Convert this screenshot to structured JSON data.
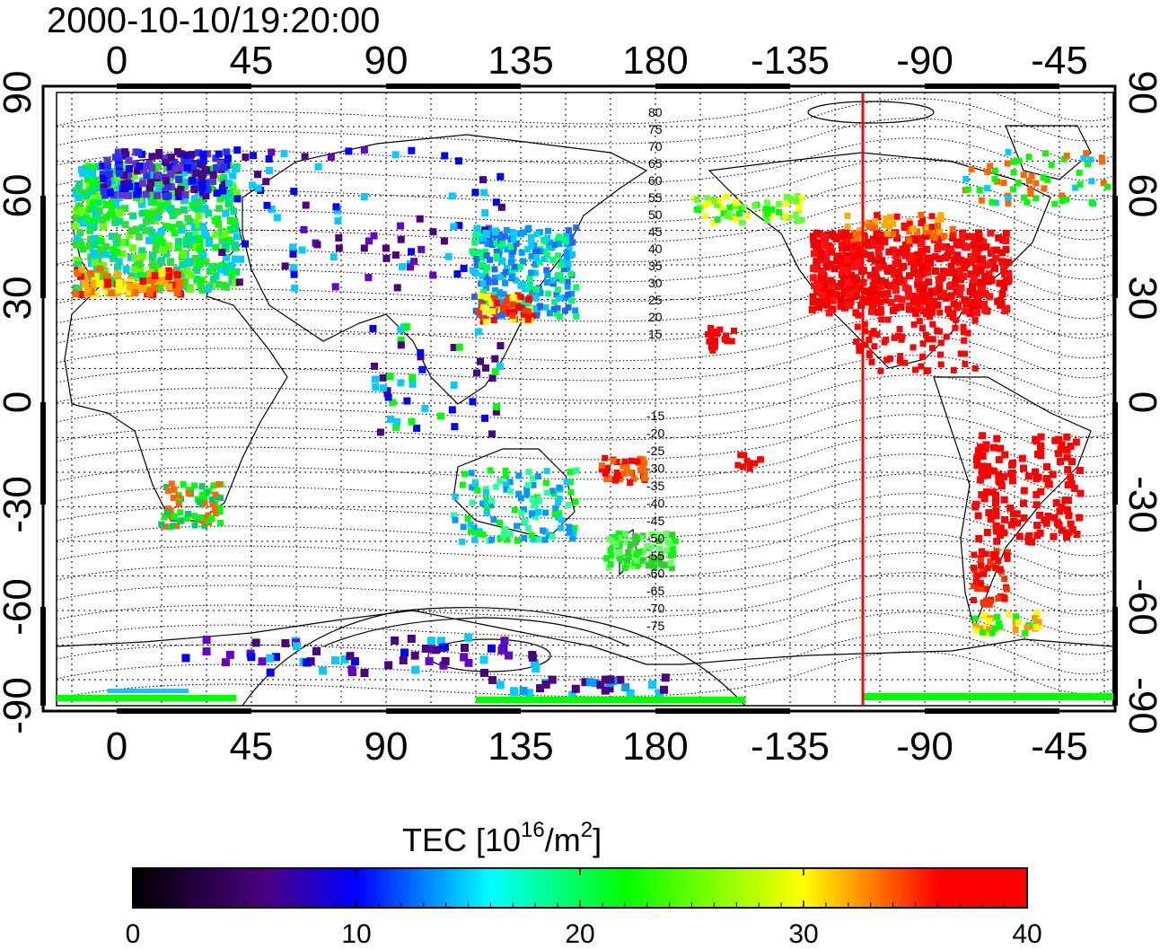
{
  "title": "2000-10-10/19:20:00",
  "map": {
    "lon_ticks": [
      "0",
      "45",
      "90",
      "135",
      "180",
      "-135",
      "-90",
      "-45"
    ],
    "lat_ticks": [
      "90",
      "60",
      "30",
      "0",
      "-30",
      "-60",
      "-90"
    ],
    "north_mlat_labels": [
      "80",
      "75",
      "70",
      "65",
      "60",
      "55",
      "50",
      "45",
      "40",
      "35",
      "30",
      "25",
      "20",
      "15"
    ],
    "south_mlat_labels": [
      "-15",
      "-20",
      "-25",
      "-30",
      "-35",
      "-40",
      "-45",
      "-50",
      "-55",
      "-60",
      "-65",
      "-70",
      "-75"
    ],
    "terminator_line_color": "#ff0000",
    "grid": true
  },
  "colorbar": {
    "title_main": "TEC  [10",
    "title_exp": "16",
    "title_mid": "/m",
    "title_exp2": "2",
    "title_end": "]",
    "ticks": [
      "0",
      "10",
      "20",
      "30",
      "40"
    ],
    "range": [
      0,
      40
    ],
    "colors": [
      "#000000",
      "#4b0082",
      "#0000ff",
      "#00ffff",
      "#00ff00",
      "#ffff00",
      "#ff0000"
    ]
  }
}
